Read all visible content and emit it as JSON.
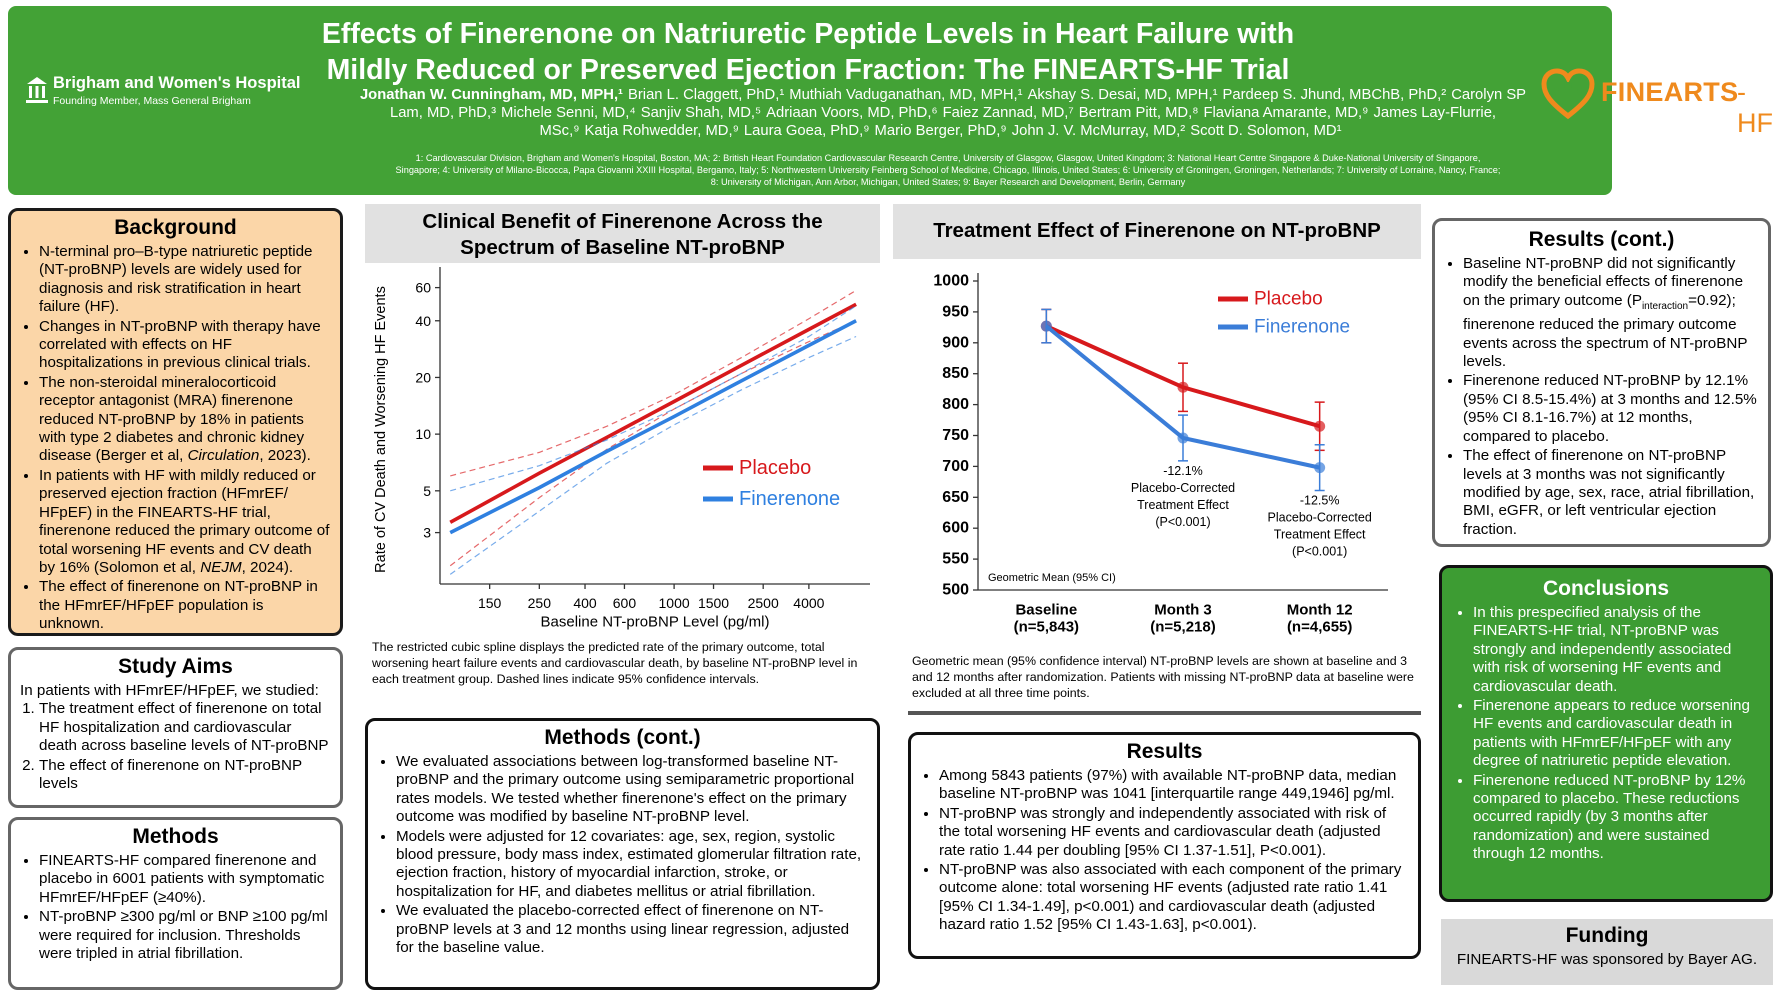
{
  "header": {
    "title": [
      "Effects of Finerenone on Natriuretic Peptide Levels in Heart Failure with",
      "Mildly Reduced or Preserved Ejection Fraction: The FINEARTS-HF Trial"
    ],
    "authors": [
      "Jonathan W. Cunningham, MD, MPH,¹",
      "Brian L. Claggett, PhD,¹",
      "Muthiah Vaduganathan, MD, MPH,¹",
      "Akshay S. Desai, MD, MPH,¹",
      "Pardeep S. Jhund, MBChB, PhD,²",
      "Carolyn SP Lam, MD, PhD,³",
      "Michele Senni, MD,⁴",
      "Sanjiv Shah, MD,⁵",
      "Adriaan Voors, MD, PhD,⁶",
      "Faiez Zannad, MD,⁷",
      "Bertram Pitt, MD,⁸",
      "Flaviana Amarante, MD,⁹",
      "James Lay-Flurrie, MSc,⁹",
      "Katja Rohwedder, MD,⁹",
      "Laura Goea, PhD,⁹",
      "Mario Berger, PhD,⁹",
      "John J. V. McMurray, MD,²",
      "Scott D. Solomon, MD¹"
    ],
    "affiliations": "1: Cardiovascular Division, Brigham and Women's Hospital, Boston, MA; 2: British Heart Foundation Cardiovascular Research Centre, University of Glasgow, Glasgow, United Kingdom; 3: National Heart Centre Singapore & Duke-National University of Singapore, Singapore; 4: University of Milano-Bicocca, Papa Giovanni XXIII Hospital, Bergamo, Italy; 5: Northwestern University Feinberg School of Medicine, Chicago, Illinois, United States; 6: University of Groningen, Groningen, Netherlands; 7: University of Lorraine, Nancy, France; 8: University of Michigan, Ann Arbor, Michigan, United States; 9: Bayer Research and Development, Berlin, Germany",
    "hospital": "Brigham and Women's Hospital",
    "hospital_sub": "Founding Member, Mass General Brigham",
    "logo_main": "FINEARTS",
    "logo_suffix": "-HF"
  },
  "background": {
    "title": "Background",
    "bullets": [
      "N-terminal pro–B-type natriuretic peptide (NT-proBNP) levels are widely used for diagnosis and risk stratification in heart failure (HF).",
      "Changes in NT-proBNP with therapy have correlated with effects on HF hospitalizations in previous clinical trials.",
      [
        "The non-steroidal mineralocorticoid receptor antagonist (MRA) finerenone reduced NT-proBNP by 18% in patients with type 2 diabetes and chronic kidney disease (Berger et al, ",
        {
          "text": "Circulation",
          "italic": true
        },
        ", 2023)."
      ],
      [
        "In patients with HF with mildly reduced or preserved ejection fraction (HFmrEF/ HFpEF) in the FINEARTS-HF trial, finerenone reduced the primary outcome of total worsening HF events and CV death by 16% (Solomon et al, ",
        {
          "text": "NEJM",
          "italic": true
        },
        ", 2024)."
      ],
      "The effect of finerenone on NT-proBNP in the HFmrEF/HFpEF population is unknown."
    ]
  },
  "study_aims": {
    "title": "Study Aims",
    "intro": "In patients with HFmrEF/HFpEF, we studied:",
    "items": [
      "The treatment effect of finerenone on total HF hospitalization and cardiovascular death across baseline levels of NT-proBNP",
      "The effect of finerenone on NT-proBNP levels"
    ]
  },
  "methods": {
    "title": "Methods",
    "bullets": [
      "FINEARTS-HF compared finerenone and placebo in 6001 patients with symptomatic HFmrEF/HFpEF (≥40%).",
      "NT-proBNP ≥300 pg/ml or BNP ≥100 pg/ml were required for inclusion. Thresholds were tripled in atrial fibrillation."
    ]
  },
  "methods_cont": {
    "title": "Methods (cont.)",
    "bullets": [
      "We evaluated associations between log-transformed baseline NT-proBNP and the primary outcome using semiparametric proportional rates models. We tested whether finerenone's effect on the primary outcome was modified by baseline NT-proBNP level.",
      "Models were adjusted for 12 covariates: age, sex, region, systolic blood pressure, body mass index, estimated glomerular filtration rate, ejection fraction, history of myocardial infarction, stroke, or hospitalization for HF, and diabetes mellitus or atrial fibrillation.",
      "We evaluated the placebo-corrected effect of finerenone on NT-proBNP levels at 3 and 12 months using linear regression, adjusted for the baseline value."
    ]
  },
  "results": {
    "title": "Results",
    "bullets": [
      "Among 5843 patients (97%) with available NT-proBNP data, median baseline NT-proBNP was 1041 [interquartile range 449,1946] pg/ml.",
      "NT-proBNP was strongly and independently associated with risk of the total worsening HF events and cardiovascular death (adjusted rate ratio 1.44 per doubling [95% CI 1.37-1.51], P<0.001).",
      "NT-proBNP was also associated with each component of the primary outcome alone: total worsening HF events (adjusted rate ratio 1.41 [95% CI 1.34-1.49], p<0.001) and cardiovascular death (adjusted hazard ratio 1.52 [95% CI 1.43-1.63], p<0.001)."
    ]
  },
  "results_cont": {
    "title": "Results (cont.)",
    "bullets": [
      [
        "Baseline NT-proBNP did not significantly modify the beneficial effects of finerenone on the primary outcome (P",
        {
          "text": "interaction",
          "sub": true
        },
        "=0.92); finerenone reduced the primary outcome events across the spectrum of NT-proBNP levels."
      ],
      "Finerenone reduced NT-proBNP by 12.1% (95% CI 8.5-15.4%) at 3 months and 12.5% (95% CI 8.1-16.7%) at 12 months, compared to placebo.",
      "The effect of finerenone on NT-proBNP levels at 3 months was not significantly modified by age, sex, race, atrial fibrillation, BMI, eGFR, or left ventricular ejection fraction."
    ]
  },
  "conclusions": {
    "title": "Conclusions",
    "bullets": [
      "In this prespecified analysis of the FINEARTS-HF trial, NT-proBNP was strongly and independently associated with risk of worsening HF events and cardiovascular death.",
      "Finerenone appears to reduce worsening HF events and cardiovascular death in patients with HFmrEF/HFpEF with any degree of natriuretic peptide elevation.",
      "Finerenone reduced NT-proBNP by 12% compared to placebo. These reductions occurred rapidly (by 3 months after randomization) and were sustained through 12 months."
    ]
  },
  "funding": {
    "title": "Funding",
    "text": "FINEARTS-HF was sponsored by Bayer AG."
  },
  "chart_data": [
    {
      "type": "line",
      "title": "Clinical Benefit of Finerenone Across the Spectrum of Baseline NT-proBNP",
      "xlabel": "Baseline NT-proBNP Level (pg/ml)",
      "ylabel": "Rate of CV Death and Worsening HF Events",
      "xscale": "log",
      "yscale": "log",
      "grid": false,
      "legend": "lower right",
      "x": [
        100,
        250,
        500,
        1000,
        2000,
        4000,
        6500
      ],
      "xlim": [
        90,
        7500
      ],
      "ylim": [
        1.6,
        70
      ],
      "xticks": [
        150,
        250,
        400,
        600,
        1000,
        1500,
        2500,
        4000
      ],
      "yticks": [
        3,
        5,
        10,
        20,
        40,
        60
      ],
      "series": [
        {
          "name": "Placebo",
          "color": "#d7191c",
          "values": [
            3.4,
            6.2,
            9.6,
            14.9,
            23.2,
            36,
            48.9
          ],
          "lower": [
            2.0,
            4.6,
            8.3,
            13.6,
            21,
            31,
            40
          ],
          "upper": [
            6.0,
            8.0,
            11.0,
            16.2,
            25.5,
            41,
            58
          ]
        },
        {
          "name": "Finerenone",
          "color": "#2f80e0",
          "values": [
            3.0,
            5.2,
            8.1,
            12.4,
            19.2,
            29.6,
            40
          ],
          "lower": [
            1.8,
            3.9,
            7.0,
            11.2,
            17.2,
            25.5,
            33
          ],
          "upper": [
            5.0,
            6.8,
            9.3,
            13.6,
            21,
            33,
            48
          ]
        }
      ],
      "caption": "The restricted cubic spline displays the predicted rate of the primary outcome, total worsening heart failure events and cardiovascular death, by baseline NT-proBNP level in each treatment group. Dashed lines indicate 95% confidence intervals."
    },
    {
      "type": "line",
      "title": "Treatment Effect of Finerenone on NT-proBNP",
      "categories": [
        "Baseline",
        "Month 3",
        "Month 12"
      ],
      "n_labels": [
        "(n=5,843)",
        "(n=5,218)",
        "(n=4,655)"
      ],
      "ylim": [
        500,
        1000
      ],
      "yticks": [
        500,
        550,
        600,
        650,
        700,
        750,
        800,
        850,
        900,
        950,
        1000
      ],
      "grid": false,
      "legend": "upper right",
      "markers": true,
      "note": "Geometric Mean (95% CI)",
      "series": [
        {
          "name": "Placebo",
          "color": "#d7191c",
          "values": [
            927,
            828,
            765
          ],
          "errors": [
            27,
            39,
            39
          ]
        },
        {
          "name": "Finerenone",
          "color": "#3b7dd8",
          "values": [
            927,
            746,
            698
          ],
          "errors": [
            27,
            37,
            37
          ]
        }
      ],
      "annotations": [
        null,
        [
          "-12.1%",
          "Placebo-Corrected",
          "Treatment Effect",
          "(P<0.001)"
        ],
        [
          "-12.5%",
          "Placebo-Corrected",
          "Treatment Effect",
          "(P<0.001)"
        ]
      ],
      "caption": "Geometric mean (95% confidence interval) NT-proBNP levels are shown at baseline and 3 and 12 months after randomization. Patients with missing NT-proBNP data at baseline were excluded at all three time points."
    }
  ]
}
